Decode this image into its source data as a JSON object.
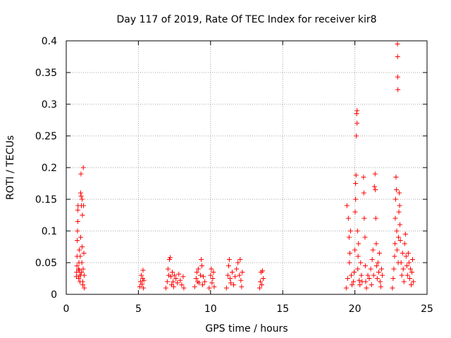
{
  "chart_data": {
    "type": "scatter",
    "title": "Day 117 of 2019, Rate Of TEC Index for receiver kir8",
    "xlabel": "GPS time / hours",
    "ylabel": "ROTI / TECUs",
    "xlim": [
      0,
      25
    ],
    "ylim": [
      0,
      0.4
    ],
    "x_ticks": [
      0,
      5,
      10,
      15,
      20,
      25
    ],
    "x_tick_labels": [
      "0",
      "5",
      "10",
      "15",
      "20",
      "25"
    ],
    "y_ticks": [
      0,
      0.05,
      0.1,
      0.15,
      0.2,
      0.25,
      0.3,
      0.35,
      0.4
    ],
    "y_tick_labels": [
      "0",
      "0.05",
      "0.1",
      "0.15",
      "0.2",
      "0.25",
      "0.3",
      "0.35",
      "0.4"
    ],
    "grid": true,
    "marker": "+",
    "marker_color": "#ff0000",
    "series": [
      {
        "name": "ROTI",
        "points": [
          [
            0.7,
            0.028
          ],
          [
            0.72,
            0.035
          ],
          [
            0.74,
            0.045
          ],
          [
            0.75,
            0.06
          ],
          [
            0.76,
            0.085
          ],
          [
            0.78,
            0.1
          ],
          [
            0.8,
            0.115
          ],
          [
            0.8,
            0.133
          ],
          [
            0.82,
            0.14
          ],
          [
            0.85,
            0.04
          ],
          [
            0.86,
            0.025
          ],
          [
            0.88,
            0.05
          ],
          [
            0.9,
            0.07
          ],
          [
            0.92,
            0.03
          ],
          [
            0.95,
            0.02
          ],
          [
            0.97,
            0.06
          ],
          [
            1.0,
            0.09
          ],
          [
            1.0,
            0.16
          ],
          [
            1.02,
            0.19
          ],
          [
            1.03,
            0.155
          ],
          [
            1.05,
            0.14
          ],
          [
            1.06,
            0.035
          ],
          [
            1.08,
            0.05
          ],
          [
            1.1,
            0.075
          ],
          [
            1.1,
            0.15
          ],
          [
            1.12,
            0.125
          ],
          [
            1.14,
            0.02
          ],
          [
            1.15,
            0.015
          ],
          [
            1.17,
            0.04
          ],
          [
            1.18,
            0.2
          ],
          [
            1.2,
            0.14
          ],
          [
            1.22,
            0.065
          ],
          [
            1.24,
            0.03
          ],
          [
            1.25,
            0.01
          ],
          [
            1.0,
            0.03
          ],
          [
            0.9,
            0.038
          ],
          [
            5.1,
            0.012
          ],
          [
            5.15,
            0.02
          ],
          [
            5.2,
            0.03
          ],
          [
            5.25,
            0.016
          ],
          [
            5.3,
            0.025
          ],
          [
            5.32,
            0.038
          ],
          [
            5.35,
            0.01
          ],
          [
            5.38,
            0.022
          ],
          [
            6.9,
            0.01
          ],
          [
            7.0,
            0.02
          ],
          [
            7.05,
            0.04
          ],
          [
            7.1,
            0.03
          ],
          [
            7.15,
            0.055
          ],
          [
            7.2,
            0.058
          ],
          [
            7.25,
            0.028
          ],
          [
            7.3,
            0.015
          ],
          [
            7.35,
            0.035
          ],
          [
            7.4,
            0.02
          ],
          [
            7.45,
            0.012
          ],
          [
            7.5,
            0.03
          ],
          [
            7.6,
            0.025
          ],
          [
            7.7,
            0.018
          ],
          [
            7.8,
            0.032
          ],
          [
            7.9,
            0.022
          ],
          [
            8.0,
            0.015
          ],
          [
            8.1,
            0.028
          ],
          [
            8.15,
            0.01
          ],
          [
            8.9,
            0.012
          ],
          [
            9.0,
            0.025
          ],
          [
            9.05,
            0.035
          ],
          [
            9.1,
            0.02
          ],
          [
            9.15,
            0.04
          ],
          [
            9.2,
            0.018
          ],
          [
            9.3,
            0.03
          ],
          [
            9.35,
            0.055
          ],
          [
            9.4,
            0.045
          ],
          [
            9.45,
            0.015
          ],
          [
            9.5,
            0.028
          ],
          [
            9.6,
            0.02
          ],
          [
            9.9,
            0.01
          ],
          [
            10.0,
            0.03
          ],
          [
            10.05,
            0.04
          ],
          [
            10.1,
            0.018
          ],
          [
            10.15,
            0.025
          ],
          [
            10.2,
            0.035
          ],
          [
            10.25,
            0.012
          ],
          [
            11.1,
            0.01
          ],
          [
            11.2,
            0.03
          ],
          [
            11.25,
            0.045
          ],
          [
            11.3,
            0.055
          ],
          [
            11.35,
            0.025
          ],
          [
            11.4,
            0.018
          ],
          [
            11.5,
            0.035
          ],
          [
            11.6,
            0.015
          ],
          [
            11.7,
            0.028
          ],
          [
            11.8,
            0.04
          ],
          [
            11.9,
            0.05
          ],
          [
            12.0,
            0.03
          ],
          [
            12.05,
            0.055
          ],
          [
            12.1,
            0.022
          ],
          [
            12.15,
            0.012
          ],
          [
            12.2,
            0.035
          ],
          [
            13.4,
            0.01
          ],
          [
            13.45,
            0.02
          ],
          [
            13.5,
            0.035
          ],
          [
            13.55,
            0.015
          ],
          [
            13.6,
            0.037
          ],
          [
            13.65,
            0.025
          ],
          [
            19.4,
            0.01
          ],
          [
            19.45,
            0.14
          ],
          [
            19.5,
            0.025
          ],
          [
            19.55,
            0.12
          ],
          [
            19.6,
            0.09
          ],
          [
            19.62,
            0.05
          ],
          [
            19.65,
            0.065
          ],
          [
            19.7,
            0.1
          ],
          [
            19.75,
            0.03
          ],
          [
            19.8,
            0.015
          ],
          [
            19.9,
            0.02
          ],
          [
            19.95,
            0.035
          ],
          [
            20.0,
            0.07
          ],
          [
            20.02,
            0.13
          ],
          [
            20.05,
            0.15
          ],
          [
            20.05,
            0.175
          ],
          [
            20.08,
            0.188
          ],
          [
            20.1,
            0.25
          ],
          [
            20.12,
            0.285
          ],
          [
            20.15,
            0.29
          ],
          [
            20.15,
            0.27
          ],
          [
            20.18,
            0.1
          ],
          [
            20.2,
            0.04
          ],
          [
            20.22,
            0.06
          ],
          [
            20.25,
            0.08
          ],
          [
            20.3,
            0.022
          ],
          [
            20.35,
            0.015
          ],
          [
            20.4,
            0.05
          ],
          [
            20.45,
            0.03
          ],
          [
            20.5,
            0.02
          ],
          [
            20.6,
            0.185
          ],
          [
            20.62,
            0.16
          ],
          [
            20.65,
            0.12
          ],
          [
            20.7,
            0.09
          ],
          [
            20.72,
            0.045
          ],
          [
            20.75,
            0.02
          ],
          [
            20.8,
            0.01
          ],
          [
            20.9,
            0.03
          ],
          [
            21.0,
            0.025
          ],
          [
            21.1,
            0.04
          ],
          [
            21.15,
            0.015
          ],
          [
            21.2,
            0.055
          ],
          [
            21.25,
            0.07
          ],
          [
            21.3,
            0.03
          ],
          [
            21.35,
            0.17
          ],
          [
            21.4,
            0.19
          ],
          [
            21.42,
            0.165
          ],
          [
            21.45,
            0.12
          ],
          [
            21.48,
            0.08
          ],
          [
            21.5,
            0.045
          ],
          [
            21.55,
            0.025
          ],
          [
            21.6,
            0.05
          ],
          [
            21.65,
            0.035
          ],
          [
            21.7,
            0.065
          ],
          [
            21.75,
            0.02
          ],
          [
            21.8,
            0.012
          ],
          [
            21.85,
            0.04
          ],
          [
            21.9,
            0.03
          ],
          [
            22.6,
            0.01
          ],
          [
            22.65,
            0.025
          ],
          [
            22.7,
            0.04
          ],
          [
            22.75,
            0.06
          ],
          [
            22.78,
            0.08
          ],
          [
            22.8,
            0.12
          ],
          [
            22.82,
            0.15
          ],
          [
            22.85,
            0.185
          ],
          [
            22.88,
            0.165
          ],
          [
            22.9,
            0.1
          ],
          [
            22.92,
            0.07
          ],
          [
            22.95,
            0.395
          ],
          [
            22.96,
            0.375
          ],
          [
            22.97,
            0.343
          ],
          [
            22.98,
            0.323
          ],
          [
            23.0,
            0.05
          ],
          [
            23.02,
            0.09
          ],
          [
            23.05,
            0.13
          ],
          [
            23.08,
            0.16
          ],
          [
            23.1,
            0.14
          ],
          [
            23.12,
            0.11
          ],
          [
            23.15,
            0.085
          ],
          [
            23.2,
            0.05
          ],
          [
            23.25,
            0.03
          ],
          [
            23.3,
            0.065
          ],
          [
            23.35,
            0.04
          ],
          [
            23.4,
            0.02
          ],
          [
            23.45,
            0.08
          ],
          [
            23.5,
            0.095
          ],
          [
            23.55,
            0.06
          ],
          [
            23.6,
            0.045
          ],
          [
            23.65,
            0.03
          ],
          [
            23.7,
            0.065
          ],
          [
            23.75,
            0.05
          ],
          [
            23.8,
            0.025
          ],
          [
            23.85,
            0.04
          ],
          [
            23.9,
            0.015
          ],
          [
            23.95,
            0.035
          ],
          [
            24.0,
            0.055
          ],
          [
            24.05,
            0.02
          ]
        ]
      }
    ]
  }
}
